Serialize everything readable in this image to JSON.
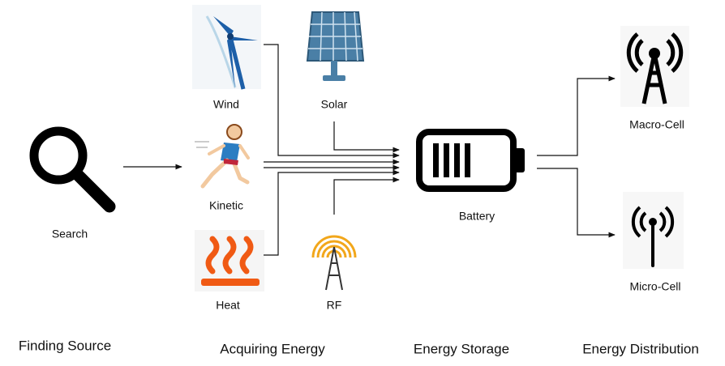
{
  "stages": [
    "Finding Source",
    "Acquiring Energy",
    "Energy Storage",
    "Energy Distribution"
  ],
  "nodes": {
    "search": "Search",
    "wind": "Wind",
    "solar": "Solar",
    "kinetic": "Kinetic",
    "heat": "Heat",
    "rf": "RF",
    "battery": "Battery",
    "macro": "Macro-Cell",
    "micro": "Micro-Cell"
  }
}
